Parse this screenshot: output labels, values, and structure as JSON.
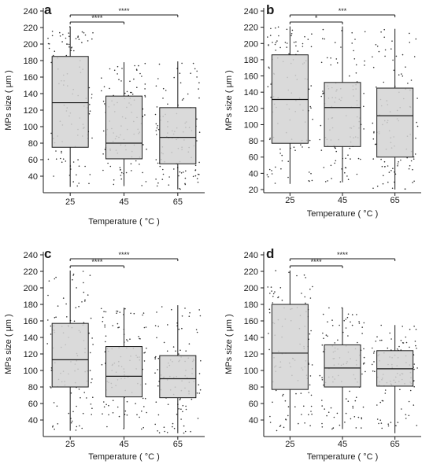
{
  "chart_data": [
    {
      "type": "box",
      "panel_label": "a",
      "xlabel": "Temperature ( °C )",
      "ylabel": "MPs size ( μm )",
      "categories": [
        "25",
        "45",
        "65"
      ],
      "ylim": [
        20,
        242
      ],
      "yticks": [
        40,
        60,
        80,
        100,
        120,
        140,
        160,
        180,
        200,
        220,
        240
      ],
      "boxes": [
        {
          "min": 27,
          "q1": 75,
          "median": 129,
          "q3": 185,
          "max": 221
        },
        {
          "min": 28,
          "q1": 61,
          "median": 80,
          "q3": 137,
          "max": 178
        },
        {
          "min": 24,
          "q1": 55,
          "median": 87,
          "q3": 123,
          "max": 179
        }
      ],
      "significance": [
        {
          "from": "25",
          "to": "45",
          "label": "****"
        },
        {
          "from": "25",
          "to": "65",
          "label": "****"
        }
      ]
    },
    {
      "type": "box",
      "panel_label": "b",
      "xlabel": "Temperature ( °C )",
      "ylabel": "MPs size ( μm )",
      "categories": [
        "25",
        "45",
        "65"
      ],
      "ylim": [
        18,
        242
      ],
      "yticks": [
        20,
        40,
        60,
        80,
        100,
        120,
        140,
        160,
        180,
        200,
        220,
        240
      ],
      "boxes": [
        {
          "min": 27,
          "q1": 77,
          "median": 131,
          "q3": 186,
          "max": 221
        },
        {
          "min": 29,
          "q1": 73,
          "median": 121,
          "q3": 152,
          "max": 221
        },
        {
          "min": 20,
          "q1": 60,
          "median": 111,
          "q3": 145,
          "max": 218
        }
      ],
      "significance": [
        {
          "from": "25",
          "to": "45",
          "label": "*"
        },
        {
          "from": "25",
          "to": "65",
          "label": "***"
        }
      ]
    },
    {
      "type": "box",
      "panel_label": "c",
      "xlabel": "Temperature ( °C )",
      "ylabel": "MPs size ( μm )",
      "categories": [
        "25",
        "45",
        "65"
      ],
      "ylim": [
        20,
        242
      ],
      "yticks": [
        40,
        60,
        80,
        100,
        120,
        140,
        160,
        180,
        200,
        220,
        240
      ],
      "boxes": [
        {
          "min": 27,
          "q1": 80,
          "median": 113,
          "q3": 157,
          "max": 221
        },
        {
          "min": 29,
          "q1": 68,
          "median": 93,
          "q3": 129,
          "max": 176
        },
        {
          "min": 24,
          "q1": 67,
          "median": 90,
          "q3": 118,
          "max": 179
        }
      ],
      "significance": [
        {
          "from": "25",
          "to": "45",
          "label": "****"
        },
        {
          "from": "25",
          "to": "65",
          "label": "****"
        }
      ]
    },
    {
      "type": "box",
      "panel_label": "d",
      "xlabel": "Temperature ( °C )",
      "ylabel": "MPs size ( μm )",
      "categories": [
        "25",
        "45",
        "65"
      ],
      "ylim": [
        20,
        242
      ],
      "yticks": [
        40,
        60,
        80,
        100,
        120,
        140,
        160,
        180,
        200,
        220,
        240
      ],
      "boxes": [
        {
          "min": 27,
          "q1": 77,
          "median": 121,
          "q3": 180,
          "max": 221
        },
        {
          "min": 29,
          "q1": 80,
          "median": 103,
          "q3": 131,
          "max": 176
        },
        {
          "min": 24,
          "q1": 81,
          "median": 102,
          "q3": 124,
          "max": 155
        }
      ],
      "significance": [
        {
          "from": "25",
          "to": "45",
          "label": "****"
        },
        {
          "from": "25",
          "to": "65",
          "label": "****"
        }
      ]
    }
  ],
  "colors": {
    "box_fill": "#d3d3d3",
    "stroke": "#1a1a1a",
    "points": "#333333",
    "text": "#1a1a1a"
  }
}
